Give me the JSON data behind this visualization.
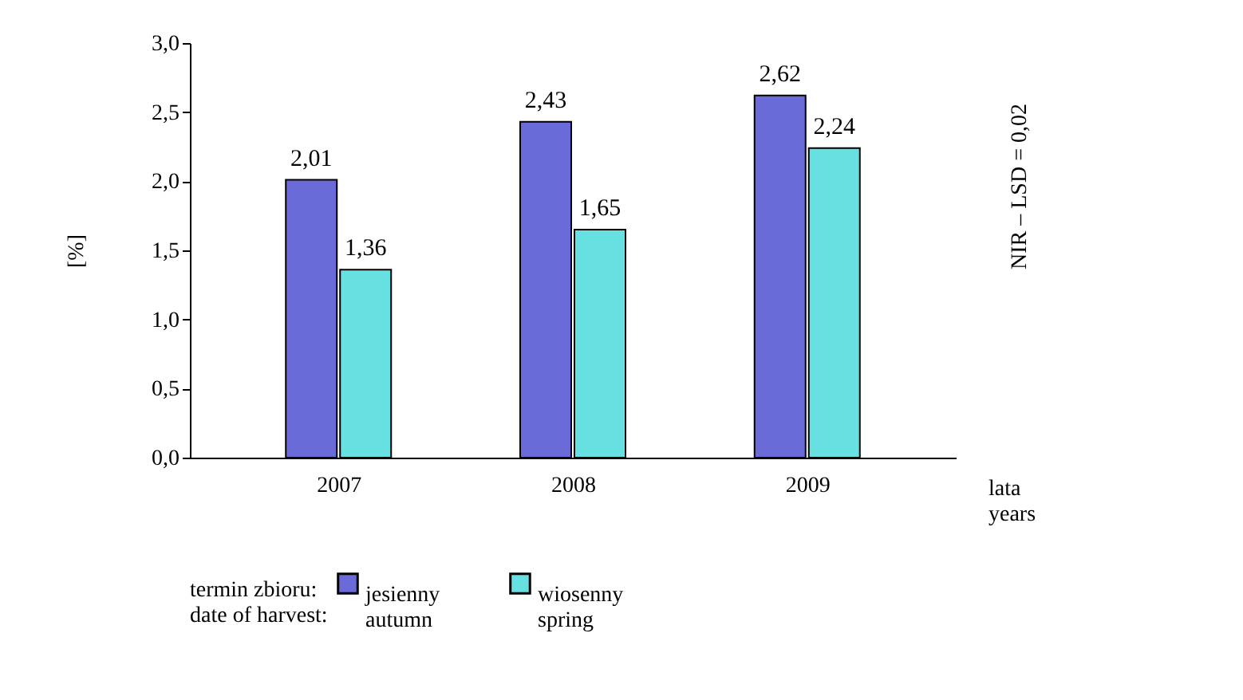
{
  "chart_data": {
    "type": "bar",
    "categories": [
      "2007",
      "2008",
      "2009"
    ],
    "series": [
      {
        "name": "jesienny\nautumn",
        "color": "#6a6ad8",
        "values": [
          2.01,
          2.43,
          2.62
        ],
        "value_labels": [
          "2,01",
          "2,43",
          "2,62"
        ]
      },
      {
        "name": "wiosenny\nspring",
        "color": "#66e0e0",
        "values": [
          1.36,
          1.65,
          2.24
        ],
        "value_labels": [
          "1,36",
          "1,65",
          "2,24"
        ]
      }
    ],
    "ylabel": "[%]",
    "xlabel": "lata\nyears",
    "legend_title": "termin zbioru:\ndate of harvest:",
    "ylim": [
      0,
      3
    ],
    "yticks": [
      {
        "value": 0,
        "label": "0,0"
      },
      {
        "value": 0.5,
        "label": "0,5"
      },
      {
        "value": 1,
        "label": "1,0"
      },
      {
        "value": 1.5,
        "label": "1,5"
      },
      {
        "value": 2,
        "label": "2,0"
      },
      {
        "value": 2.5,
        "label": "2,5"
      },
      {
        "value": 3,
        "label": "3,0"
      }
    ],
    "annotations": [
      "NIR – LSD = 0,02"
    ],
    "grid": false,
    "legend": "bottom"
  }
}
